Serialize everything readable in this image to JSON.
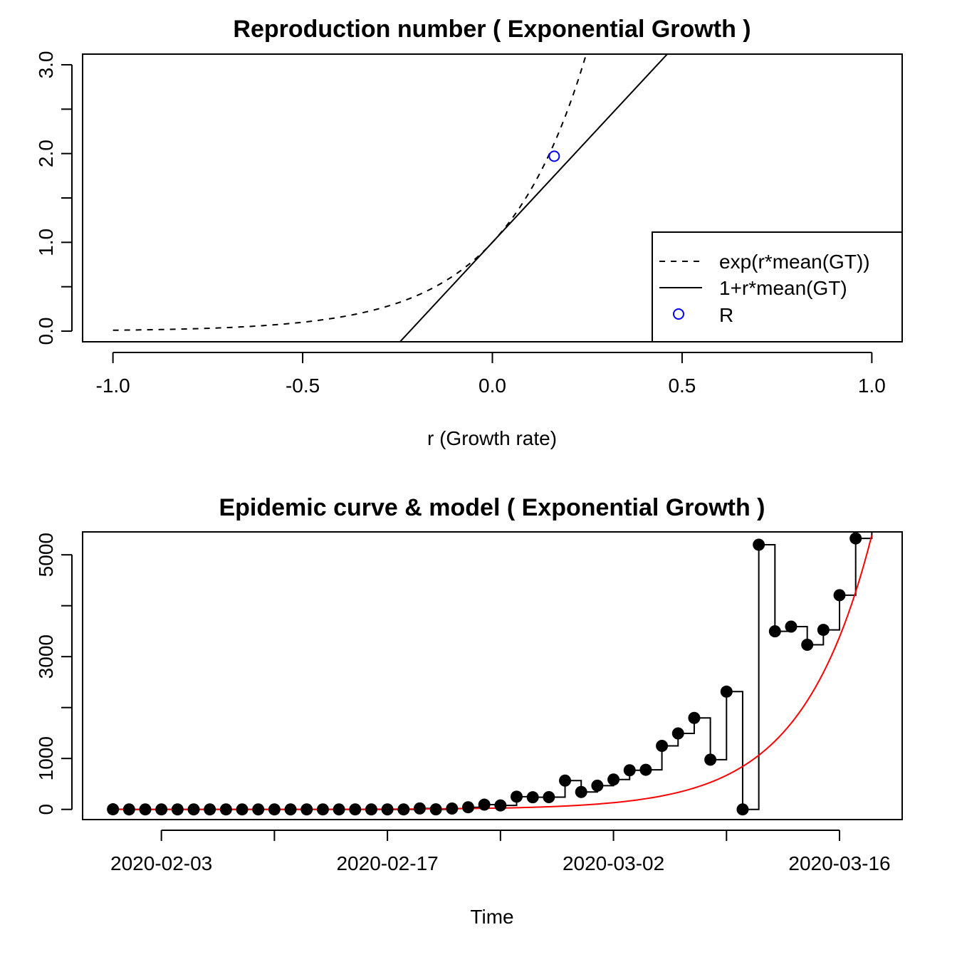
{
  "chart_data": [
    {
      "type": "line",
      "title": "Reproduction number ( Exponential Growth )",
      "xlabel": "r (Growth rate)",
      "ylabel": "",
      "xlim": [
        -1.08,
        1.08
      ],
      "ylim": [
        -0.12,
        3.12
      ],
      "x_ticks": [
        -1.0,
        -0.5,
        0.0,
        0.5,
        1.0
      ],
      "x_tick_labels": [
        "-1.0",
        "-0.5",
        "0.0",
        "0.5",
        "1.0"
      ],
      "y_ticks": [
        0,
        0.5,
        1,
        1.5,
        2,
        2.5,
        3
      ],
      "y_tick_labels": [
        "0.0",
        "",
        "1.0",
        "",
        "2.0",
        "",
        "3.0"
      ],
      "mean_gt": 4.6,
      "series": [
        {
          "name": "exp(r*mean(GT))",
          "style": "dashed",
          "color": "#000000",
          "formula": "exp(r*mean(GT))"
        },
        {
          "name": "1+r*mean(GT)",
          "style": "solid",
          "color": "#000000",
          "formula": "1+r*mean(GT)"
        },
        {
          "name": "R",
          "style": "point",
          "color": "#0000ff",
          "x": [
            0.163
          ],
          "y": [
            1.97
          ]
        }
      ],
      "legend": {
        "position": "bottom-right",
        "entries": [
          "exp(r*mean(GT))",
          "1+r*mean(GT)",
          "R"
        ]
      }
    },
    {
      "type": "line",
      "title": "Epidemic curve & model ( Exponential Growth )",
      "xlabel": "Time",
      "ylabel": "",
      "x_start": "2020-01-31",
      "ylim": [
        -200,
        5450
      ],
      "y_ticks": [
        0,
        1000,
        2000,
        3000,
        4000,
        5000
      ],
      "y_tick_labels": [
        "0",
        "1000",
        "",
        "3000",
        "",
        "5000"
      ],
      "x_ticks": [
        "2020-02-03",
        "2020-02-10",
        "2020-02-17",
        "2020-02-24",
        "2020-03-02",
        "2020-03-09",
        "2020-03-16"
      ],
      "x_tick_labels": [
        "2020-02-03",
        "",
        "2020-02-17",
        "",
        "2020-03-02",
        "",
        "2020-03-16"
      ],
      "observed": {
        "style": "step",
        "color": "#000000",
        "x": [
          "2020-01-31",
          "2020-02-01",
          "2020-02-02",
          "2020-02-03",
          "2020-02-04",
          "2020-02-05",
          "2020-02-06",
          "2020-02-07",
          "2020-02-08",
          "2020-02-09",
          "2020-02-10",
          "2020-02-11",
          "2020-02-12",
          "2020-02-13",
          "2020-02-14",
          "2020-02-15",
          "2020-02-16",
          "2020-02-17",
          "2020-02-18",
          "2020-02-19",
          "2020-02-20",
          "2020-02-21",
          "2020-02-22",
          "2020-02-23",
          "2020-02-24",
          "2020-02-25",
          "2020-02-26",
          "2020-02-27",
          "2020-02-28",
          "2020-02-29",
          "2020-03-01",
          "2020-03-02",
          "2020-03-03",
          "2020-03-04",
          "2020-03-05",
          "2020-03-06",
          "2020-03-07",
          "2020-03-08",
          "2020-03-09",
          "2020-03-10",
          "2020-03-11",
          "2020-03-12",
          "2020-03-13",
          "2020-03-14",
          "2020-03-15",
          "2020-03-16",
          "2020-03-17",
          "2020-03-18"
        ],
        "values": [
          2,
          0,
          0,
          0,
          0,
          0,
          0,
          0,
          0,
          0,
          0,
          0,
          0,
          0,
          0,
          0,
          0,
          0,
          0,
          19,
          1,
          17,
          42,
          93,
          78,
          250,
          238,
          240,
          566,
          342,
          466,
          587,
          769,
          778,
          1247,
          1492,
          1797,
          977,
          2313,
          0,
          5198,
          3497,
          3590,
          3233,
          3526,
          4207,
          5322,
          5986
        ]
      },
      "model": {
        "style": "line",
        "color": "#ff0000",
        "formula": "exponential",
        "x": [
          "2020-01-31",
          "2020-03-18"
        ],
        "y_start": 0.1,
        "y_end": 5386
      }
    }
  ]
}
